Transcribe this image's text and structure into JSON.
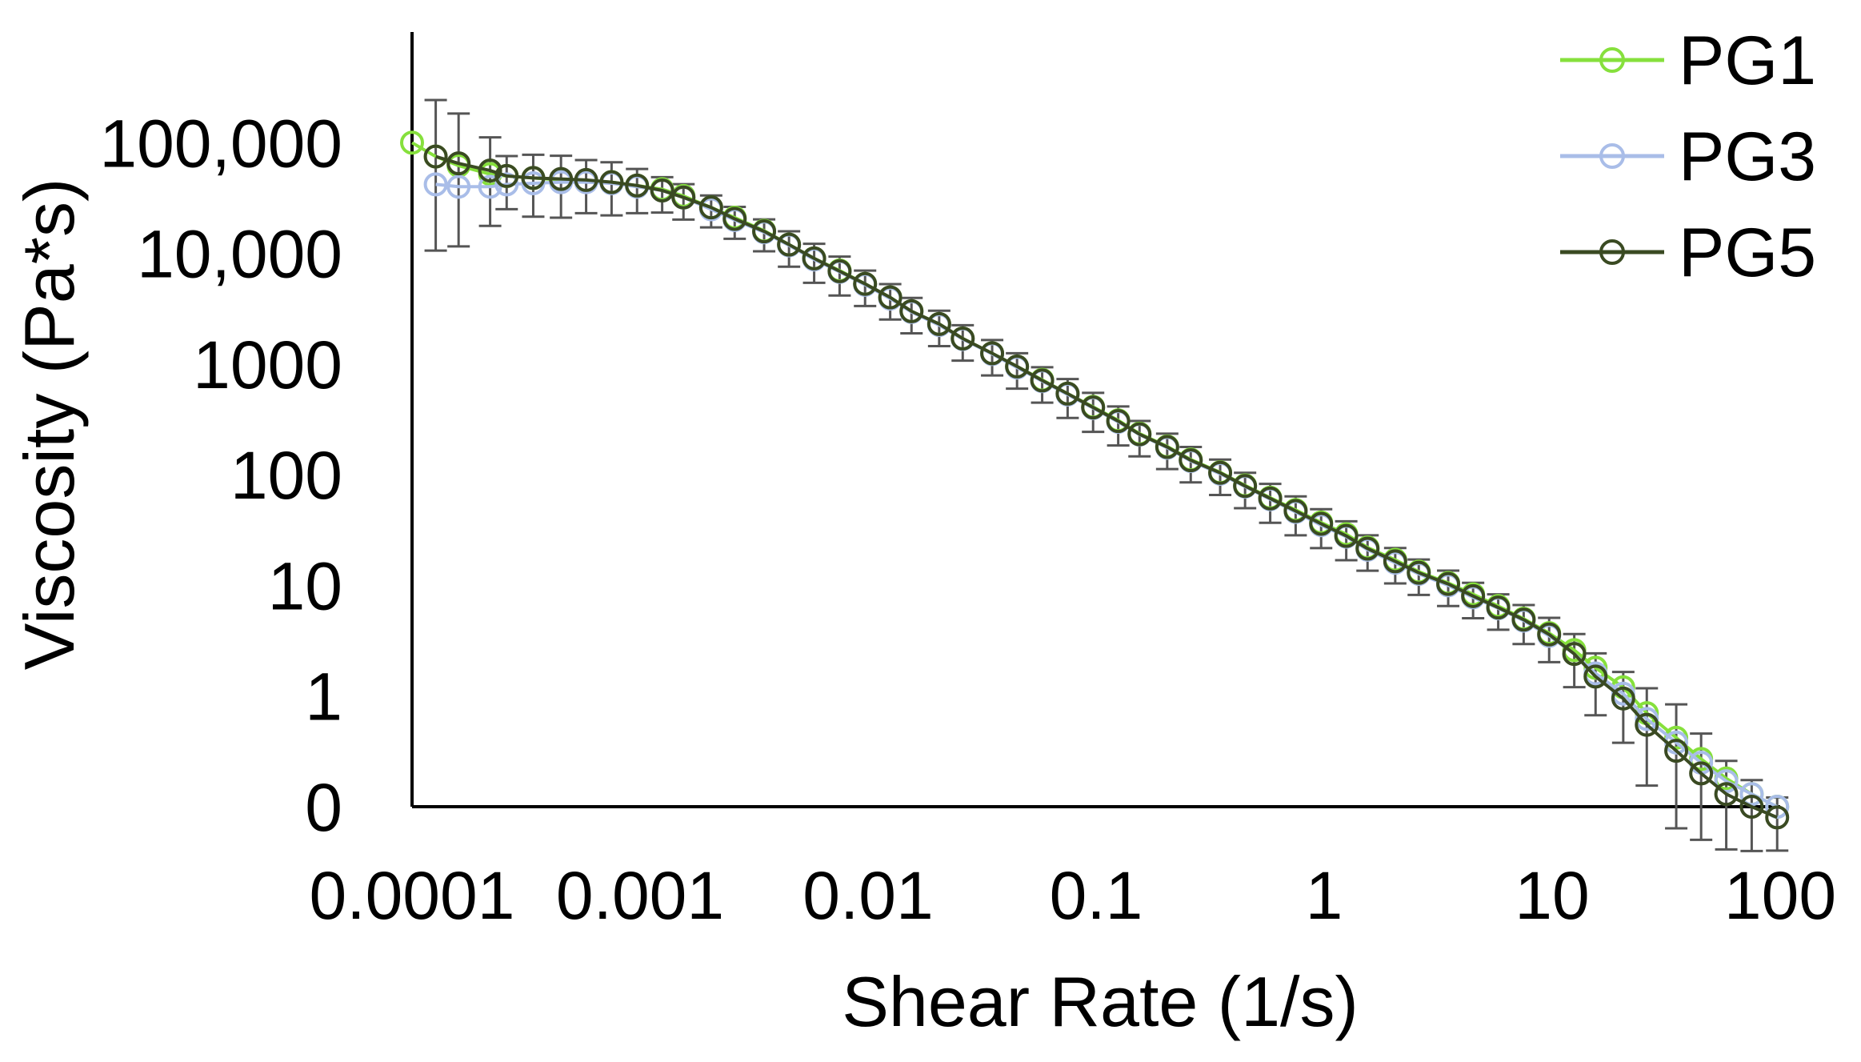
{
  "chart_data": {
    "type": "line",
    "title": "",
    "xlabel": "Shear Rate (1/s)",
    "ylabel": "Viscosity (Pa*s)",
    "x_scale": "log",
    "y_scale": "log",
    "xlim": [
      0.0001,
      100
    ],
    "ylim": [
      0.1,
      1000000
    ],
    "x_ticks": [
      {
        "value": 0.0001,
        "label": "0.0001"
      },
      {
        "value": 0.001,
        "label": "0.001"
      },
      {
        "value": 0.01,
        "label": "0.01"
      },
      {
        "value": 0.1,
        "label": "0.1"
      },
      {
        "value": 1,
        "label": "1"
      },
      {
        "value": 10,
        "label": "10"
      },
      {
        "value": 100,
        "label": "100"
      }
    ],
    "y_ticks": [
      {
        "value": 0.1,
        "label": "0"
      },
      {
        "value": 1,
        "label": "1"
      },
      {
        "value": 10,
        "label": "10"
      },
      {
        "value": 100,
        "label": "100"
      },
      {
        "value": 1000,
        "label": "1000"
      },
      {
        "value": 10000,
        "label": "10,000"
      },
      {
        "value": 100000,
        "label": "100,000"
      }
    ],
    "grid": false,
    "legend_position": "top-right",
    "error_bars": true,
    "series": [
      {
        "name": "PG1",
        "color": "#86e03c",
        "marker": "open-circle",
        "x": [
          0.0001,
          0.000127,
          0.00016,
          0.00022,
          0.00026,
          0.00034,
          0.00045,
          0.00058,
          0.00075,
          0.00097,
          0.00125,
          0.00155,
          0.00205,
          0.0026,
          0.0035,
          0.0045,
          0.0058,
          0.0075,
          0.0097,
          0.0125,
          0.0155,
          0.0205,
          0.026,
          0.035,
          0.045,
          0.058,
          0.075,
          0.097,
          0.125,
          0.155,
          0.205,
          0.26,
          0.35,
          0.45,
          0.58,
          0.75,
          0.97,
          1.25,
          1.55,
          2.05,
          2.6,
          3.5,
          4.5,
          5.8,
          7.5,
          9.7,
          12.5,
          15.5,
          20.5,
          26,
          35,
          45,
          58,
          75,
          97
        ],
        "y": [
          100000,
          75000,
          62000,
          52000,
          50000,
          48000,
          46000,
          45000,
          44000,
          41000,
          38000,
          33000,
          26000,
          21000,
          16000,
          12000,
          9000,
          7000,
          5300,
          4000,
          3000,
          2300,
          1700,
          1250,
          950,
          720,
          540,
          410,
          310,
          235,
          180,
          137,
          105,
          80,
          62,
          48,
          37,
          29,
          22,
          17,
          13.3,
          10.5,
          8.3,
          6.5,
          5,
          3.7,
          2.6,
          1.8,
          1.2,
          0.7,
          0.42,
          0.27,
          0.18,
          0.13,
          0.1
        ],
        "err": [
          0,
          0,
          0,
          0,
          0,
          0,
          0,
          0,
          0,
          0,
          0,
          0,
          0,
          0,
          0,
          0,
          0,
          0,
          0,
          0,
          0,
          0,
          0,
          0,
          0,
          0,
          0,
          0,
          0,
          0,
          0,
          0,
          0,
          0,
          0,
          0,
          0,
          0,
          0,
          0,
          0,
          0,
          0,
          0,
          0,
          0,
          0,
          0,
          0,
          0,
          0,
          0,
          0,
          0,
          0
        ]
      },
      {
        "name": "PG3",
        "color": "#a9bde8",
        "marker": "open-circle",
        "x": [
          0.000127,
          0.00016,
          0.00022,
          0.00026,
          0.00034,
          0.00045,
          0.00058,
          0.00075,
          0.00097,
          0.00125,
          0.00155,
          0.00205,
          0.0026,
          0.0035,
          0.0045,
          0.0058,
          0.0075,
          0.0097,
          0.0125,
          0.0155,
          0.0205,
          0.026,
          0.035,
          0.045,
          0.058,
          0.075,
          0.097,
          0.125,
          0.155,
          0.205,
          0.26,
          0.35,
          0.45,
          0.58,
          0.75,
          0.97,
          1.25,
          1.55,
          2.05,
          2.6,
          3.5,
          4.5,
          5.8,
          7.5,
          9.7,
          12.5,
          15.5,
          20.5,
          26,
          35,
          45,
          58,
          75,
          97
        ],
        "y": [
          42000,
          40000,
          40000,
          42000,
          43000,
          44000,
          44000,
          43000,
          40000,
          37000,
          32000,
          25000,
          20000,
          15500,
          11800,
          8800,
          6800,
          5200,
          3900,
          2950,
          2250,
          1680,
          1230,
          930,
          700,
          530,
          400,
          300,
          230,
          175,
          133,
          102,
          78,
          60,
          46,
          35,
          27.5,
          21,
          16,
          12.7,
          10,
          7.8,
          6.2,
          4.8,
          3.5,
          2.4,
          1.6,
          1.05,
          0.62,
          0.38,
          0.25,
          0.17,
          0.13,
          0.1
        ],
        "err": [
          0,
          0,
          0,
          0,
          0,
          0,
          0,
          0,
          0,
          0,
          0,
          0,
          0,
          0,
          0,
          0,
          0,
          0,
          0,
          0,
          0,
          0,
          0,
          0,
          0,
          0,
          0,
          0,
          0,
          0,
          0,
          0,
          0,
          0,
          0,
          0,
          0,
          0,
          0,
          0,
          0,
          0,
          0,
          0,
          0,
          0,
          0,
          0,
          0,
          0,
          0,
          0,
          0,
          0
        ]
      },
      {
        "name": "PG5",
        "color": "#3a4a22",
        "marker": "open-circle",
        "x": [
          0.000127,
          0.00016,
          0.00022,
          0.00026,
          0.00034,
          0.00045,
          0.00058,
          0.00075,
          0.00097,
          0.00125,
          0.00155,
          0.00205,
          0.0026,
          0.0035,
          0.0045,
          0.0058,
          0.0075,
          0.0097,
          0.0125,
          0.0155,
          0.0205,
          0.026,
          0.035,
          0.045,
          0.058,
          0.075,
          0.097,
          0.125,
          0.155,
          0.205,
          0.26,
          0.35,
          0.45,
          0.58,
          0.75,
          0.97,
          1.25,
          1.55,
          2.05,
          2.6,
          3.5,
          4.5,
          5.8,
          7.5,
          9.7,
          12.5,
          15.5,
          20.5,
          26,
          35,
          45,
          58,
          75,
          97
        ],
        "y": [
          75000,
          65000,
          56000,
          50000,
          48000,
          47000,
          46000,
          44000,
          41000,
          37000,
          32000,
          26000,
          20500,
          15800,
          12000,
          9000,
          6900,
          5300,
          4000,
          3000,
          2300,
          1700,
          1250,
          950,
          710,
          540,
          405,
          305,
          232,
          178,
          135,
          104,
          79,
          61,
          47,
          36,
          28,
          21.5,
          16.5,
          13,
          10.3,
          8,
          6.3,
          4.9,
          3.6,
          2.4,
          1.5,
          0.95,
          0.55,
          0.32,
          0.2,
          0.13,
          0.1,
          0.08
        ],
        "err": [
          0.85,
          0.75,
          0.5,
          0.3,
          0.35,
          0.35,
          0.3,
          0.3,
          0.25,
          0.2,
          0.2,
          0.18,
          0.18,
          0.18,
          0.2,
          0.22,
          0.22,
          0.2,
          0.2,
          0.2,
          0.2,
          0.2,
          0.2,
          0.2,
          0.2,
          0.22,
          0.22,
          0.22,
          0.2,
          0.2,
          0.2,
          0.2,
          0.2,
          0.22,
          0.22,
          0.22,
          0.22,
          0.2,
          0.2,
          0.2,
          0.2,
          0.2,
          0.2,
          0.22,
          0.25,
          0.3,
          0.35,
          0.4,
          0.55,
          0.7,
          0.6,
          0.5,
          0.4,
          0.3
        ]
      }
    ]
  }
}
